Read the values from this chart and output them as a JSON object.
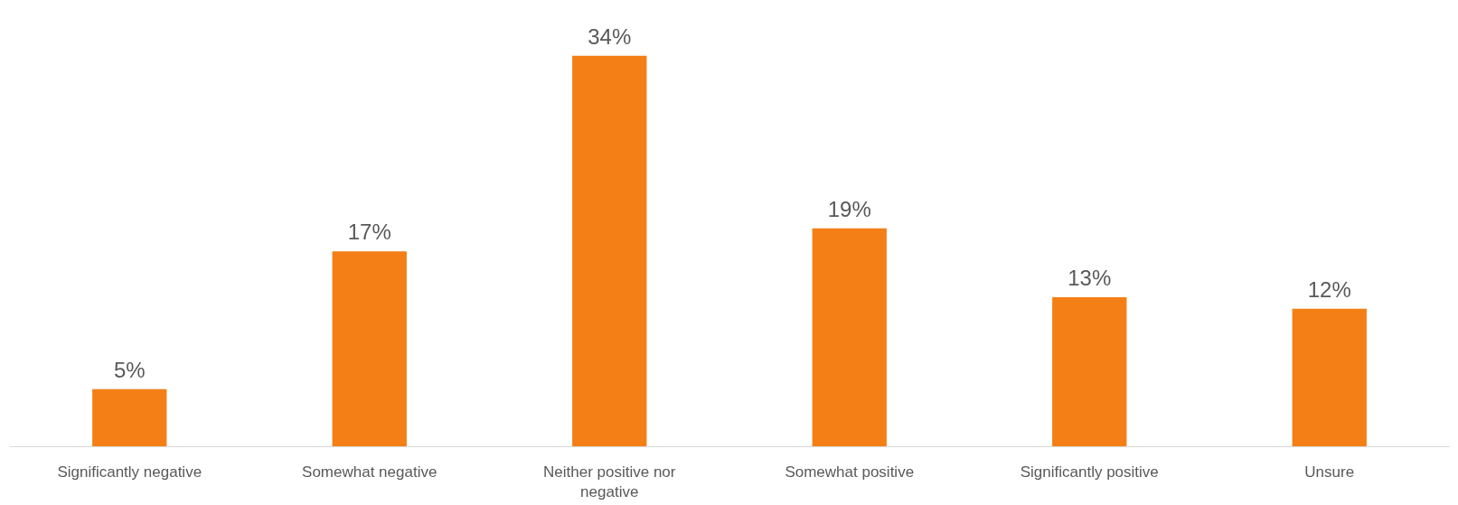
{
  "chart_data": {
    "type": "bar",
    "categories": [
      "Significantly negative",
      "Somewhat negative",
      "Neither positive nor negative",
      "Somewhat positive",
      "Significantly positive",
      "Unsure"
    ],
    "values": [
      5,
      17,
      34,
      19,
      13,
      12
    ],
    "color": "#f47f16",
    "value_labels": [
      "5%",
      "17%",
      "34%",
      "19%",
      "13%",
      "12%"
    ],
    "grid": false
  }
}
